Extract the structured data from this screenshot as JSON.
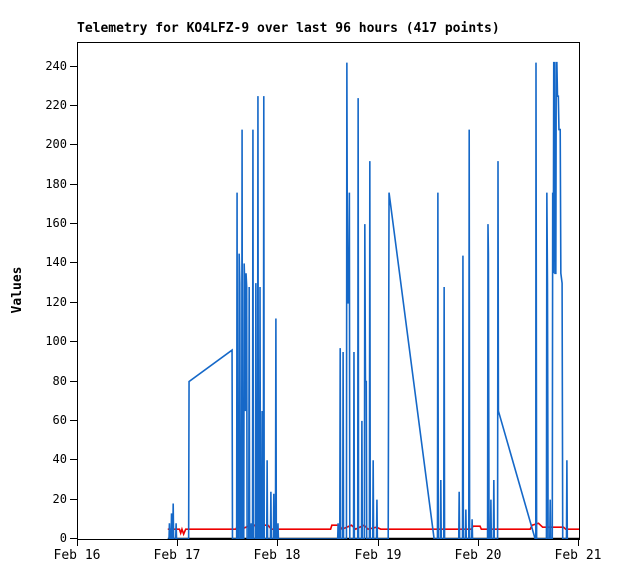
{
  "title": "Telemetry for KO4LFZ-9 over last 96 hours (417 points)",
  "colors": {
    "blue": "#1568C8",
    "red": "#EE0000",
    "black": "#000000",
    "frame": "#000000"
  },
  "chart_data": {
    "type": "line",
    "title": "Telemetry for KO4LFZ-9 over last 96 hours (417 points)",
    "xlabel": "",
    "ylabel": "Values",
    "x_unit": "hours since Feb 16 00:00",
    "xlim": [
      0,
      120
    ],
    "ylim": [
      0,
      252
    ],
    "grid": false,
    "legend": "none",
    "points_count": 417,
    "y_ticks": [
      {
        "v": 0,
        "label": "0"
      },
      {
        "v": 20,
        "label": "20"
      },
      {
        "v": 40,
        "label": "40"
      },
      {
        "v": 60,
        "label": "60"
      },
      {
        "v": 80,
        "label": "80"
      },
      {
        "v": 100,
        "label": "100"
      },
      {
        "v": 120,
        "label": "120"
      },
      {
        "v": 140,
        "label": "140"
      },
      {
        "v": 160,
        "label": "160"
      },
      {
        "v": 180,
        "label": "180"
      },
      {
        "v": 200,
        "label": "200"
      },
      {
        "v": 220,
        "label": "220"
      },
      {
        "v": 240,
        "label": "240"
      }
    ],
    "x_ticks": [
      {
        "t": 0,
        "label": "Feb 16"
      },
      {
        "t": 24,
        "label": "Feb 17"
      },
      {
        "t": 48,
        "label": "Feb 18"
      },
      {
        "t": 72,
        "label": "Feb 19"
      },
      {
        "t": 96,
        "label": "Feb 20"
      },
      {
        "t": 120,
        "label": "Feb 21"
      }
    ],
    "series": [
      {
        "name": "telemetry-channel-black",
        "color": "#000000",
        "stroke_width": 2.5,
        "points": [
          [
            21.5,
            0
          ],
          [
            120,
            0
          ]
        ]
      },
      {
        "name": "telemetry-channel-red",
        "color": "#EE0000",
        "stroke_width": 1.6,
        "points": [
          [
            21.5,
            5
          ],
          [
            24.3,
            5
          ],
          [
            24.6,
            3
          ],
          [
            24.9,
            5
          ],
          [
            25.3,
            2.5
          ],
          [
            25.8,
            5
          ],
          [
            37.8,
            5
          ],
          [
            38.3,
            7
          ],
          [
            39.2,
            5
          ],
          [
            41.3,
            7
          ],
          [
            42.3,
            7
          ],
          [
            42.8,
            5
          ],
          [
            43.8,
            7
          ],
          [
            45.5,
            7
          ],
          [
            46.3,
            5
          ],
          [
            60.5,
            5
          ],
          [
            60.8,
            7
          ],
          [
            62.5,
            7
          ],
          [
            63.3,
            5
          ],
          [
            65.5,
            7
          ],
          [
            66.5,
            5
          ],
          [
            68.5,
            7
          ],
          [
            69.5,
            5
          ],
          [
            71.5,
            6
          ],
          [
            72.5,
            5
          ],
          [
            94.3,
            5
          ],
          [
            94.6,
            6.5
          ],
          [
            96.3,
            6.5
          ],
          [
            96.6,
            5
          ],
          [
            108.3,
            5
          ],
          [
            108.8,
            7
          ],
          [
            110.3,
            8
          ],
          [
            111.3,
            6
          ],
          [
            113.3,
            6
          ],
          [
            116.3,
            6
          ],
          [
            116.8,
            5
          ],
          [
            120,
            5
          ]
        ]
      },
      {
        "name": "telemetry-channel-blue",
        "color": "#1568C8",
        "stroke_width": 1.6,
        "points": [
          [
            21.8,
            0
          ],
          [
            21.9,
            8
          ],
          [
            22.0,
            0
          ],
          [
            22.3,
            0
          ],
          [
            22.4,
            13
          ],
          [
            22.5,
            0
          ],
          [
            22.7,
            0
          ],
          [
            22.8,
            18
          ],
          [
            22.9,
            0
          ],
          [
            23.4,
            0
          ],
          [
            23.5,
            8
          ],
          [
            23.6,
            0
          ],
          [
            26.5,
            0
          ],
          [
            26.6,
            80
          ],
          [
            36.9,
            96
          ],
          [
            37.0,
            0
          ],
          [
            38.0,
            0
          ],
          [
            38.1,
            176
          ],
          [
            38.2,
            0
          ],
          [
            38.5,
            0
          ],
          [
            38.6,
            145
          ],
          [
            38.75,
            130
          ],
          [
            38.9,
            0
          ],
          [
            39.2,
            0
          ],
          [
            39.3,
            208
          ],
          [
            39.4,
            0
          ],
          [
            39.7,
            0
          ],
          [
            39.8,
            140
          ],
          [
            39.95,
            128
          ],
          [
            40.1,
            65
          ],
          [
            40.25,
            135
          ],
          [
            40.4,
            128
          ],
          [
            40.5,
            0
          ],
          [
            40.9,
            0
          ],
          [
            41.0,
            128
          ],
          [
            41.1,
            0
          ],
          [
            41.4,
            0
          ],
          [
            41.5,
            8
          ],
          [
            41.6,
            0
          ],
          [
            41.8,
            0
          ],
          [
            41.9,
            208
          ],
          [
            42.0,
            0
          ],
          [
            42.5,
            0
          ],
          [
            42.6,
            130
          ],
          [
            42.7,
            0
          ],
          [
            43.0,
            0
          ],
          [
            43.1,
            225
          ],
          [
            43.2,
            0
          ],
          [
            43.5,
            0
          ],
          [
            43.6,
            128
          ],
          [
            43.7,
            0
          ],
          [
            44.0,
            0
          ],
          [
            44.1,
            65
          ],
          [
            44.2,
            0
          ],
          [
            44.4,
            0
          ],
          [
            44.5,
            225
          ],
          [
            44.6,
            0
          ],
          [
            45.2,
            0
          ],
          [
            45.3,
            40
          ],
          [
            45.4,
            0
          ],
          [
            46.1,
            0
          ],
          [
            46.2,
            24
          ],
          [
            46.3,
            0
          ],
          [
            46.8,
            0
          ],
          [
            46.9,
            23
          ],
          [
            47.0,
            0
          ],
          [
            47.3,
            0
          ],
          [
            47.4,
            112
          ],
          [
            47.5,
            0
          ],
          [
            47.8,
            0
          ],
          [
            47.9,
            8
          ],
          [
            48.0,
            0
          ],
          [
            62.2,
            0
          ],
          [
            62.3,
            8
          ],
          [
            62.4,
            0
          ],
          [
            62.7,
            0
          ],
          [
            62.8,
            97
          ],
          [
            62.9,
            0
          ],
          [
            63.4,
            0
          ],
          [
            63.5,
            95
          ],
          [
            63.6,
            0
          ],
          [
            64.3,
            0
          ],
          [
            64.4,
            242
          ],
          [
            64.55,
            120
          ],
          [
            64.8,
            120
          ],
          [
            65.0,
            176
          ],
          [
            65.1,
            0
          ],
          [
            66.0,
            0
          ],
          [
            66.1,
            95
          ],
          [
            66.2,
            0
          ],
          [
            67.0,
            0
          ],
          [
            67.1,
            224
          ],
          [
            67.2,
            0
          ],
          [
            67.9,
            0
          ],
          [
            68.0,
            60
          ],
          [
            68.1,
            0
          ],
          [
            68.6,
            0
          ],
          [
            68.7,
            160
          ],
          [
            68.85,
            80
          ],
          [
            69.05,
            80
          ],
          [
            69.15,
            0
          ],
          [
            69.8,
            0
          ],
          [
            69.9,
            192
          ],
          [
            70.0,
            0
          ],
          [
            70.6,
            0
          ],
          [
            70.7,
            40
          ],
          [
            70.8,
            0
          ],
          [
            71.5,
            0
          ],
          [
            71.6,
            20
          ],
          [
            71.7,
            0
          ],
          [
            74.3,
            0
          ],
          [
            74.5,
            176
          ],
          [
            85.3,
            0
          ],
          [
            86.1,
            0
          ],
          [
            86.2,
            176
          ],
          [
            86.3,
            0
          ],
          [
            86.8,
            0
          ],
          [
            86.9,
            30
          ],
          [
            87.0,
            0
          ],
          [
            87.6,
            0
          ],
          [
            87.7,
            128
          ],
          [
            87.8,
            0
          ],
          [
            91.2,
            0
          ],
          [
            91.3,
            24
          ],
          [
            91.4,
            0
          ],
          [
            92.1,
            0
          ],
          [
            92.2,
            144
          ],
          [
            92.3,
            0
          ],
          [
            92.8,
            0
          ],
          [
            92.9,
            15
          ],
          [
            93.0,
            0
          ],
          [
            93.6,
            0
          ],
          [
            93.7,
            208
          ],
          [
            93.8,
            0
          ],
          [
            94.3,
            0
          ],
          [
            94.4,
            10
          ],
          [
            94.5,
            0
          ],
          [
            98.1,
            0
          ],
          [
            98.2,
            160
          ],
          [
            98.3,
            145
          ],
          [
            98.45,
            0
          ],
          [
            98.8,
            0
          ],
          [
            98.9,
            20
          ],
          [
            99.0,
            0
          ],
          [
            99.5,
            0
          ],
          [
            99.6,
            30
          ],
          [
            99.7,
            0
          ],
          [
            100.5,
            0
          ],
          [
            100.6,
            192
          ],
          [
            100.7,
            65
          ],
          [
            109.5,
            0
          ],
          [
            109.65,
            0
          ],
          [
            109.7,
            242
          ],
          [
            109.85,
            0
          ],
          [
            112.2,
            0
          ],
          [
            112.3,
            176
          ],
          [
            112.45,
            130
          ],
          [
            112.6,
            0
          ],
          [
            113.0,
            0
          ],
          [
            113.1,
            20
          ],
          [
            113.2,
            0
          ],
          [
            113.6,
            0
          ],
          [
            113.7,
            176
          ],
          [
            113.85,
            135
          ],
          [
            113.95,
            242
          ],
          [
            114.1,
            242
          ],
          [
            114.25,
            135
          ],
          [
            114.45,
            135
          ],
          [
            114.55,
            242
          ],
          [
            114.7,
            242
          ],
          [
            114.85,
            225
          ],
          [
            115.05,
            225
          ],
          [
            115.2,
            208
          ],
          [
            115.5,
            208
          ],
          [
            115.65,
            135
          ],
          [
            115.95,
            130
          ],
          [
            116.1,
            0
          ],
          [
            117.0,
            0
          ],
          [
            117.1,
            40
          ],
          [
            117.2,
            0
          ]
        ]
      }
    ]
  }
}
